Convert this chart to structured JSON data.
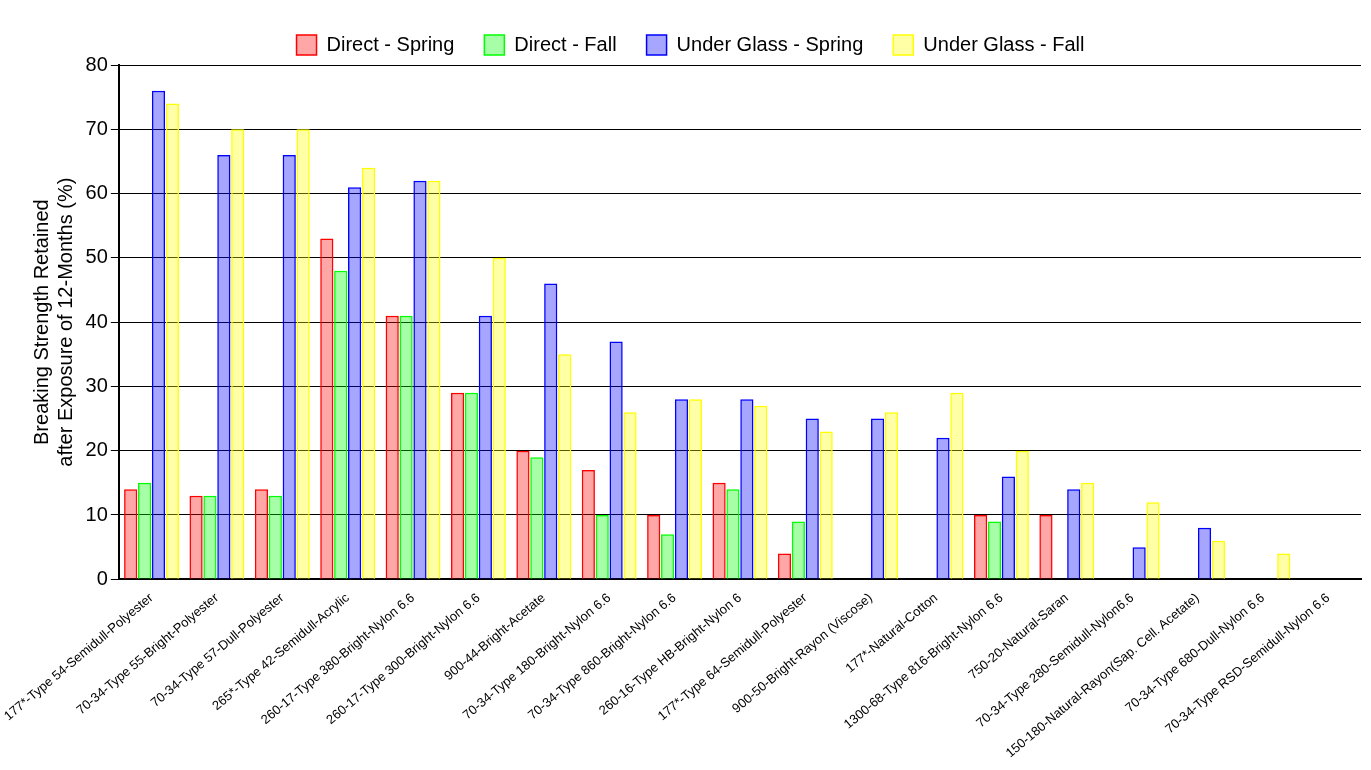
{
  "chart_data": {
    "type": "bar",
    "ylabel": "Breaking Strength Retained\nafter Exposure of 12-Months (%)",
    "categories": [
      "177*-Type 54-Semidull-Polyester",
      "70-34-Type 55-Bright-Polyester",
      "70-34-Type 57-Dull-Polyester",
      "265*-Type 42-Semidull-Acrylic",
      "260-17-Type 380-Bright-Nylon 6.6",
      "260-17-Type 300-Bright-Nylon 6.6",
      "900-44-Bright-Acetate",
      "70-34-Type 180-Bright-Nylon 6.6",
      "70-34-Type 860-Bright-Nylon 6.6",
      "260-16-Type HB-Bright-Nylon 6",
      "177*-Type 64-Semidull-Polyester",
      "900-50-Bright-Rayon (Viscose)",
      "177*-Natural-Cotton",
      "1300-68-Type 816-Bright-Nylon 6.6",
      "750-20-Natural-Saran",
      "70-34-Type 280-Semidull-Nylon6.6",
      "150-180-Natural-Rayon(Sap. Cell. Acetate)",
      "70-34-Type 680-Dull-Nylon 6.6",
      "70-34-Type RSD-Semidull-Nylon 6.6"
    ],
    "series": [
      {
        "name": "Direct - Spring",
        "color": "#ff0000",
        "values": [
          14,
          13,
          14,
          53,
          41,
          29,
          20,
          17,
          10,
          15,
          4,
          0,
          0,
          10,
          10,
          0,
          0,
          0,
          0
        ]
      },
      {
        "name": "Direct - Fall",
        "color": "#00ff00",
        "values": [
          15,
          13,
          13,
          48,
          41,
          29,
          19,
          10,
          7,
          14,
          9,
          0,
          0,
          9,
          0,
          0,
          0,
          0,
          0
        ]
      },
      {
        "name": "Under Glass - Spring",
        "color": "#0000ff",
        "values": [
          76,
          66,
          66,
          61,
          62,
          41,
          46,
          37,
          28,
          28,
          25,
          25,
          22,
          16,
          14,
          5,
          8,
          0,
          0
        ]
      },
      {
        "name": "Under Glass - Fall",
        "color": "#ffff00",
        "values": [
          74,
          70,
          70,
          64,
          62,
          50,
          35,
          26,
          28,
          27,
          23,
          26,
          29,
          20,
          15,
          12,
          6,
          4,
          0
        ]
      }
    ],
    "ylim": [
      0,
      80
    ],
    "yticks": [
      0,
      10,
      20,
      30,
      40,
      50,
      60,
      70,
      80
    ],
    "grid": "y",
    "legend": "top"
  }
}
